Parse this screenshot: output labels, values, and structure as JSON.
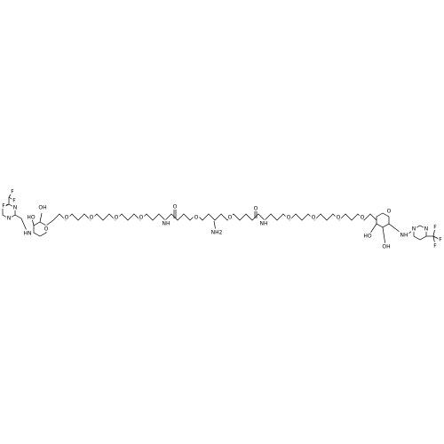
{
  "labels": [
    "F",
    "F",
    "F",
    "N",
    "N",
    "HN",
    "HO",
    "OH",
    "O",
    "O",
    "O",
    "O",
    "O",
    "NH",
    "O",
    "O",
    "NH2",
    "O",
    "O",
    "NH",
    "O",
    "O",
    "O",
    "O",
    "O",
    "HO",
    "OH",
    "NH",
    "N",
    "N",
    "F",
    "F",
    "F"
  ]
}
